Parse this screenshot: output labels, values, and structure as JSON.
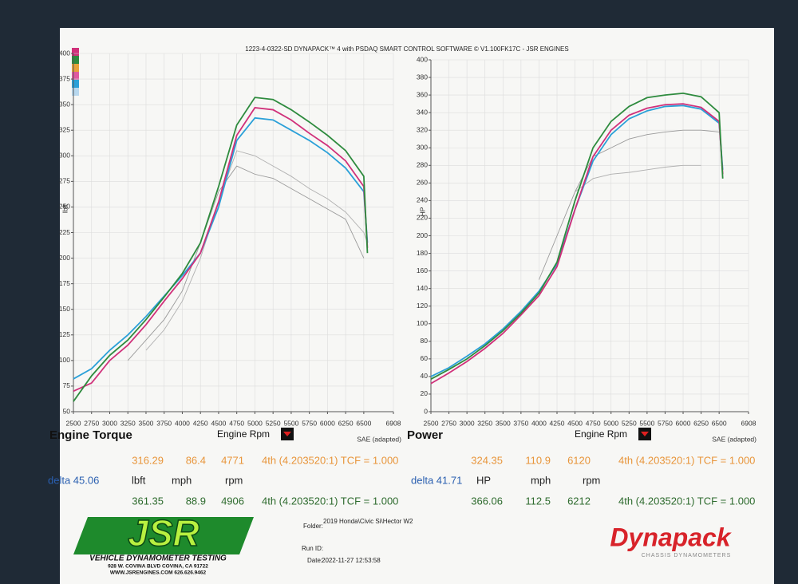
{
  "header": "1223-4-0322-SD DYNAPACK™ 4 with PSDAQ SMART CONTROL SOFTWARE © V1.100FK17C - JSR ENGINES",
  "chart_data": [
    {
      "type": "line",
      "title": "Engine Torque",
      "xlabel": "Engine Rpm",
      "ylabel": "lbft",
      "note": "SAE (adapted)",
      "x": [
        2500,
        2750,
        3000,
        3250,
        3500,
        3750,
        4000,
        4250,
        4500,
        4750,
        5000,
        5250,
        5500,
        5750,
        6000,
        6250,
        6500,
        6550
      ],
      "xlim": [
        2500,
        6908
      ],
      "xticks": [
        2500,
        2750,
        3000,
        3250,
        3500,
        3750,
        4000,
        4250,
        4500,
        4750,
        5000,
        5250,
        5500,
        5750,
        6000,
        6250,
        6500,
        6908
      ],
      "ylim": [
        50,
        400
      ],
      "yticks": [
        50,
        75,
        100,
        125,
        150,
        175,
        200,
        225,
        250,
        275,
        300,
        325,
        350,
        375,
        400
      ],
      "grid": true,
      "series": [
        {
          "color": "#2e8b3e",
          "values": [
            60,
            85,
            105,
            120,
            140,
            162,
            185,
            215,
            270,
            330,
            357,
            355,
            345,
            333,
            320,
            305,
            280,
            205
          ]
        },
        {
          "color": "#d0307a",
          "values": [
            70,
            78,
            100,
            115,
            135,
            158,
            180,
            205,
            255,
            320,
            347,
            345,
            335,
            322,
            310,
            295,
            270,
            210
          ]
        },
        {
          "color": "#2aa0d8",
          "values": [
            82,
            92,
            110,
            125,
            143,
            163,
            183,
            205,
            250,
            315,
            337,
            335,
            325,
            315,
            303,
            288,
            265,
            215
          ]
        },
        {
          "color": "#9a9a9a",
          "values": [
            null,
            null,
            null,
            100,
            120,
            140,
            168,
            215,
            265,
            290,
            282,
            278,
            268,
            258,
            248,
            238,
            200,
            null
          ]
        },
        {
          "color": "#b0b0b0",
          "values": [
            null,
            null,
            null,
            null,
            110,
            130,
            158,
            200,
            255,
            305,
            300,
            290,
            280,
            268,
            258,
            245,
            225,
            215
          ]
        }
      ]
    },
    {
      "type": "line",
      "title": "Power",
      "xlabel": "Engine Rpm",
      "ylabel": "HP",
      "note": "SAE (adapted)",
      "x": [
        2500,
        2750,
        3000,
        3250,
        3500,
        3750,
        4000,
        4250,
        4500,
        4750,
        5000,
        5250,
        5500,
        5750,
        6000,
        6250,
        6500,
        6550
      ],
      "xlim": [
        2500,
        6908
      ],
      "xticks": [
        2500,
        2750,
        3000,
        3250,
        3500,
        3750,
        4000,
        4250,
        4500,
        4750,
        5000,
        5250,
        5500,
        5750,
        6000,
        6250,
        6500,
        6908
      ],
      "ylim": [
        0,
        400
      ],
      "yticks": [
        0,
        20,
        40,
        60,
        80,
        100,
        120,
        140,
        160,
        180,
        200,
        220,
        240,
        260,
        280,
        300,
        320,
        340,
        360,
        380,
        400
      ],
      "grid": true,
      "series": [
        {
          "color": "#2e8b3e",
          "values": [
            37,
            48,
            60,
            75,
            92,
            112,
            135,
            170,
            240,
            300,
            330,
            347,
            357,
            360,
            362,
            358,
            340,
            265
          ]
        },
        {
          "color": "#d0307a",
          "values": [
            32,
            44,
            57,
            72,
            89,
            110,
            132,
            165,
            230,
            290,
            320,
            337,
            345,
            349,
            350,
            346,
            330,
            270
          ]
        },
        {
          "color": "#2aa0d8",
          "values": [
            40,
            50,
            63,
            77,
            94,
            114,
            137,
            168,
            230,
            285,
            315,
            333,
            342,
            347,
            348,
            344,
            328,
            275
          ]
        },
        {
          "color": "#9a9a9a",
          "values": [
            null,
            null,
            null,
            null,
            null,
            null,
            150,
            200,
            250,
            290,
            300,
            310,
            315,
            318,
            320,
            320,
            318,
            null
          ]
        },
        {
          "color": "#b0b0b0",
          "values": [
            null,
            null,
            null,
            null,
            null,
            null,
            null,
            null,
            250,
            265,
            270,
            272,
            275,
            278,
            280,
            280,
            null,
            null
          ]
        }
      ]
    }
  ],
  "stats": {
    "torque": {
      "row1": [
        "316.29",
        "86.4",
        "4771",
        "4th (4.203520:1) TCF = 1.000"
      ],
      "row2": [
        "delta 45.06",
        "lbft",
        "mph",
        "rpm"
      ],
      "row3": [
        "361.35",
        "88.9",
        "4906",
        "4th (4.203520:1) TCF = 1.000"
      ]
    },
    "power": {
      "row1": [
        "324.35",
        "110.9",
        "6120",
        "4th (4.203520:1) TCF = 1.000"
      ],
      "row2": [
        "delta 41.71",
        "HP",
        "mph",
        "rpm"
      ],
      "row3": [
        "366.06",
        "112.5",
        "6212",
        "4th (4.203520:1) TCF = 1.000"
      ]
    }
  },
  "footer": {
    "folder_label": "Folder:",
    "folder": "2019 Honda\\Civic Si\\Hector W2",
    "run_label": "Run ID:",
    "date_label": "Date:",
    "date": "2022-11-27 12:53:58",
    "logo": "JSR",
    "logo_sub": "VEHICLE DYNAMOMETER TESTING",
    "address": "928 W. COVINA BLVD COVINA, CA 91722",
    "web": "WWW.JSRENGINES.COM 626.626.9462",
    "brand": "Dynapack",
    "brand_sub": "CHASSIS DYNAMOMETERS"
  }
}
